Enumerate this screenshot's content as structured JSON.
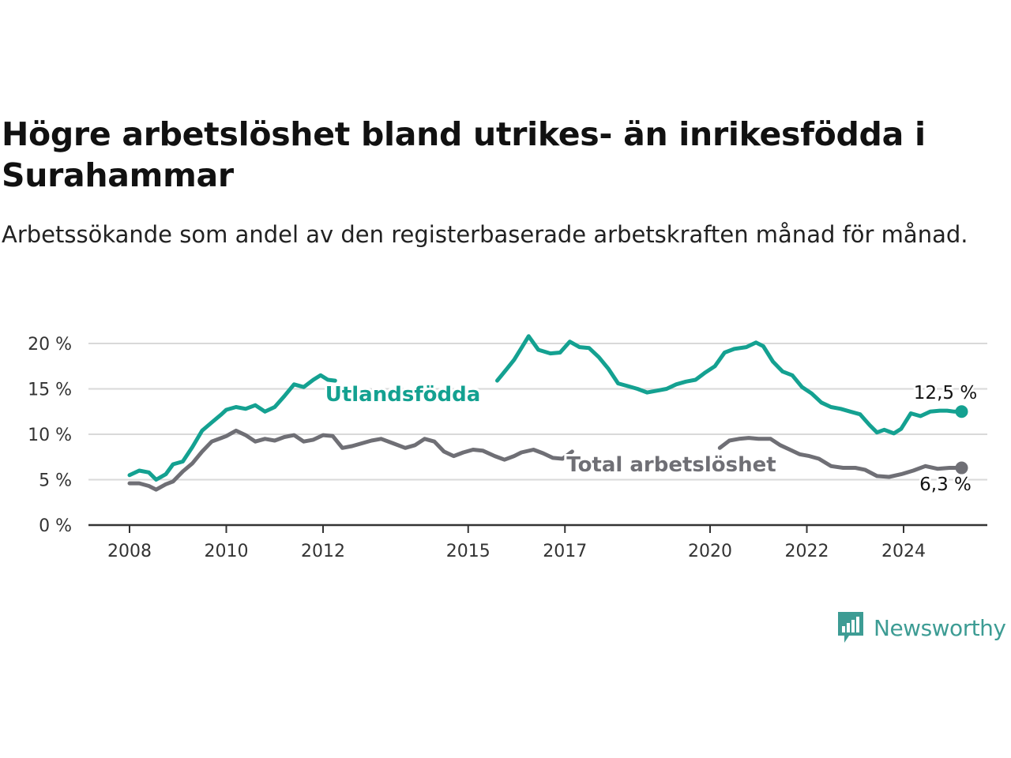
{
  "header": {
    "title": "Högre arbetslöshet bland utrikes- än inrikesfödda i Surahammar",
    "subtitle": "Arbetssökande som andel av den registerbaserade arbetskraften månad för månad."
  },
  "brand": {
    "name": "Newsworthy",
    "color": "#3d9c94",
    "icon": "newsworthy-chart-logo-icon"
  },
  "chart_data": {
    "type": "line",
    "x_axis": {
      "range": [
        2007.85,
        2025.75
      ],
      "ticks": [
        2008,
        2010,
        2012,
        2015,
        2017,
        2020,
        2022,
        2024
      ]
    },
    "y_axis": {
      "range": [
        0,
        20
      ],
      "ticks": [
        0,
        5,
        10,
        15,
        20
      ],
      "tick_labels": [
        "0 %",
        "5 %",
        "10 %",
        "15 %",
        "20 %"
      ]
    },
    "grid": true,
    "series": [
      {
        "name": "Utlandsfödda",
        "color": "#14a191",
        "end_label": "12,5 %",
        "points": [
          [
            2008.0,
            5.5
          ],
          [
            2008.2,
            6.0
          ],
          [
            2008.4,
            5.8
          ],
          [
            2008.55,
            5.0
          ],
          [
            2008.75,
            5.6
          ],
          [
            2008.9,
            6.7
          ],
          [
            2009.1,
            7.0
          ],
          [
            2009.3,
            8.6
          ],
          [
            2009.5,
            10.4
          ],
          [
            2009.7,
            11.3
          ],
          [
            2009.9,
            12.2
          ],
          [
            2010.0,
            12.7
          ],
          [
            2010.2,
            13.0
          ],
          [
            2010.4,
            12.8
          ],
          [
            2010.6,
            13.2
          ],
          [
            2010.8,
            12.5
          ],
          [
            2011.0,
            13.0
          ],
          [
            2011.2,
            14.2
          ],
          [
            2011.4,
            15.5
          ],
          [
            2011.6,
            15.2
          ],
          [
            2011.8,
            16.0
          ],
          [
            2011.95,
            16.5
          ],
          [
            2012.1,
            16.0
          ],
          [
            2012.25,
            15.9
          ],
          [
            2015.6,
            15.9
          ],
          [
            2015.8,
            17.2
          ],
          [
            2015.95,
            18.2
          ],
          [
            2016.1,
            19.5
          ],
          [
            2016.25,
            20.8
          ],
          [
            2016.45,
            19.3
          ],
          [
            2016.7,
            18.9
          ],
          [
            2016.9,
            19.0
          ],
          [
            2017.1,
            20.2
          ],
          [
            2017.3,
            19.6
          ],
          [
            2017.5,
            19.5
          ],
          [
            2017.7,
            18.5
          ],
          [
            2017.9,
            17.2
          ],
          [
            2018.1,
            15.6
          ],
          [
            2018.3,
            15.3
          ],
          [
            2018.5,
            15.0
          ],
          [
            2018.7,
            14.6
          ],
          [
            2018.9,
            14.8
          ],
          [
            2019.1,
            15.0
          ],
          [
            2019.3,
            15.5
          ],
          [
            2019.5,
            15.8
          ],
          [
            2019.7,
            16.0
          ],
          [
            2019.9,
            16.8
          ],
          [
            2020.1,
            17.5
          ],
          [
            2020.3,
            19.0
          ],
          [
            2020.5,
            19.4
          ],
          [
            2020.75,
            19.6
          ],
          [
            2020.95,
            20.1
          ],
          [
            2021.1,
            19.7
          ],
          [
            2021.3,
            18.0
          ],
          [
            2021.5,
            16.9
          ],
          [
            2021.7,
            16.5
          ],
          [
            2021.9,
            15.2
          ],
          [
            2022.1,
            14.5
          ],
          [
            2022.3,
            13.5
          ],
          [
            2022.5,
            13.0
          ],
          [
            2022.7,
            12.8
          ],
          [
            2022.9,
            12.5
          ],
          [
            2023.1,
            12.2
          ],
          [
            2023.3,
            11.0
          ],
          [
            2023.45,
            10.2
          ],
          [
            2023.6,
            10.5
          ],
          [
            2023.8,
            10.1
          ],
          [
            2023.95,
            10.6
          ],
          [
            2024.15,
            12.3
          ],
          [
            2024.35,
            12.0
          ],
          [
            2024.55,
            12.5
          ],
          [
            2024.75,
            12.6
          ],
          [
            2024.9,
            12.6
          ],
          [
            2025.05,
            12.5
          ],
          [
            2025.2,
            12.5
          ]
        ]
      },
      {
        "name": "Total arbetslöshet",
        "color": "#6f6f75",
        "end_label": "6,3 %",
        "points": [
          [
            2008.0,
            4.6
          ],
          [
            2008.2,
            4.6
          ],
          [
            2008.4,
            4.3
          ],
          [
            2008.55,
            3.9
          ],
          [
            2008.75,
            4.5
          ],
          [
            2008.9,
            4.8
          ],
          [
            2009.1,
            5.9
          ],
          [
            2009.3,
            6.8
          ],
          [
            2009.5,
            8.1
          ],
          [
            2009.7,
            9.2
          ],
          [
            2009.9,
            9.6
          ],
          [
            2010.0,
            9.8
          ],
          [
            2010.2,
            10.4
          ],
          [
            2010.4,
            9.9
          ],
          [
            2010.6,
            9.2
          ],
          [
            2010.8,
            9.5
          ],
          [
            2011.0,
            9.3
          ],
          [
            2011.2,
            9.7
          ],
          [
            2011.4,
            9.9
          ],
          [
            2011.6,
            9.2
          ],
          [
            2011.8,
            9.4
          ],
          [
            2012.0,
            9.9
          ],
          [
            2012.2,
            9.8
          ],
          [
            2012.4,
            8.5
          ],
          [
            2012.6,
            8.7
          ],
          [
            2012.8,
            9.0
          ],
          [
            2013.0,
            9.3
          ],
          [
            2013.2,
            9.5
          ],
          [
            2013.45,
            9.0
          ],
          [
            2013.7,
            8.5
          ],
          [
            2013.9,
            8.8
          ],
          [
            2014.1,
            9.5
          ],
          [
            2014.3,
            9.2
          ],
          [
            2014.5,
            8.1
          ],
          [
            2014.7,
            7.6
          ],
          [
            2014.9,
            8.0
          ],
          [
            2015.1,
            8.3
          ],
          [
            2015.3,
            8.2
          ],
          [
            2015.55,
            7.6
          ],
          [
            2015.75,
            7.2
          ],
          [
            2015.95,
            7.6
          ],
          [
            2016.1,
            8.0
          ],
          [
            2016.35,
            8.3
          ],
          [
            2016.55,
            7.9
          ],
          [
            2016.75,
            7.4
          ],
          [
            2016.95,
            7.3
          ],
          [
            2017.15,
            8.1
          ],
          [
            2020.2,
            8.5
          ],
          [
            2020.4,
            9.3
          ],
          [
            2020.6,
            9.5
          ],
          [
            2020.8,
            9.6
          ],
          [
            2021.0,
            9.5
          ],
          [
            2021.25,
            9.5
          ],
          [
            2021.45,
            8.8
          ],
          [
            2021.65,
            8.3
          ],
          [
            2021.85,
            7.8
          ],
          [
            2022.05,
            7.6
          ],
          [
            2022.25,
            7.3
          ],
          [
            2022.5,
            6.5
          ],
          [
            2022.75,
            6.3
          ],
          [
            2023.0,
            6.3
          ],
          [
            2023.2,
            6.1
          ],
          [
            2023.45,
            5.4
          ],
          [
            2023.7,
            5.3
          ],
          [
            2023.95,
            5.6
          ],
          [
            2024.2,
            6.0
          ],
          [
            2024.45,
            6.5
          ],
          [
            2024.7,
            6.2
          ],
          [
            2024.95,
            6.3
          ],
          [
            2025.2,
            6.3
          ]
        ]
      }
    ]
  }
}
